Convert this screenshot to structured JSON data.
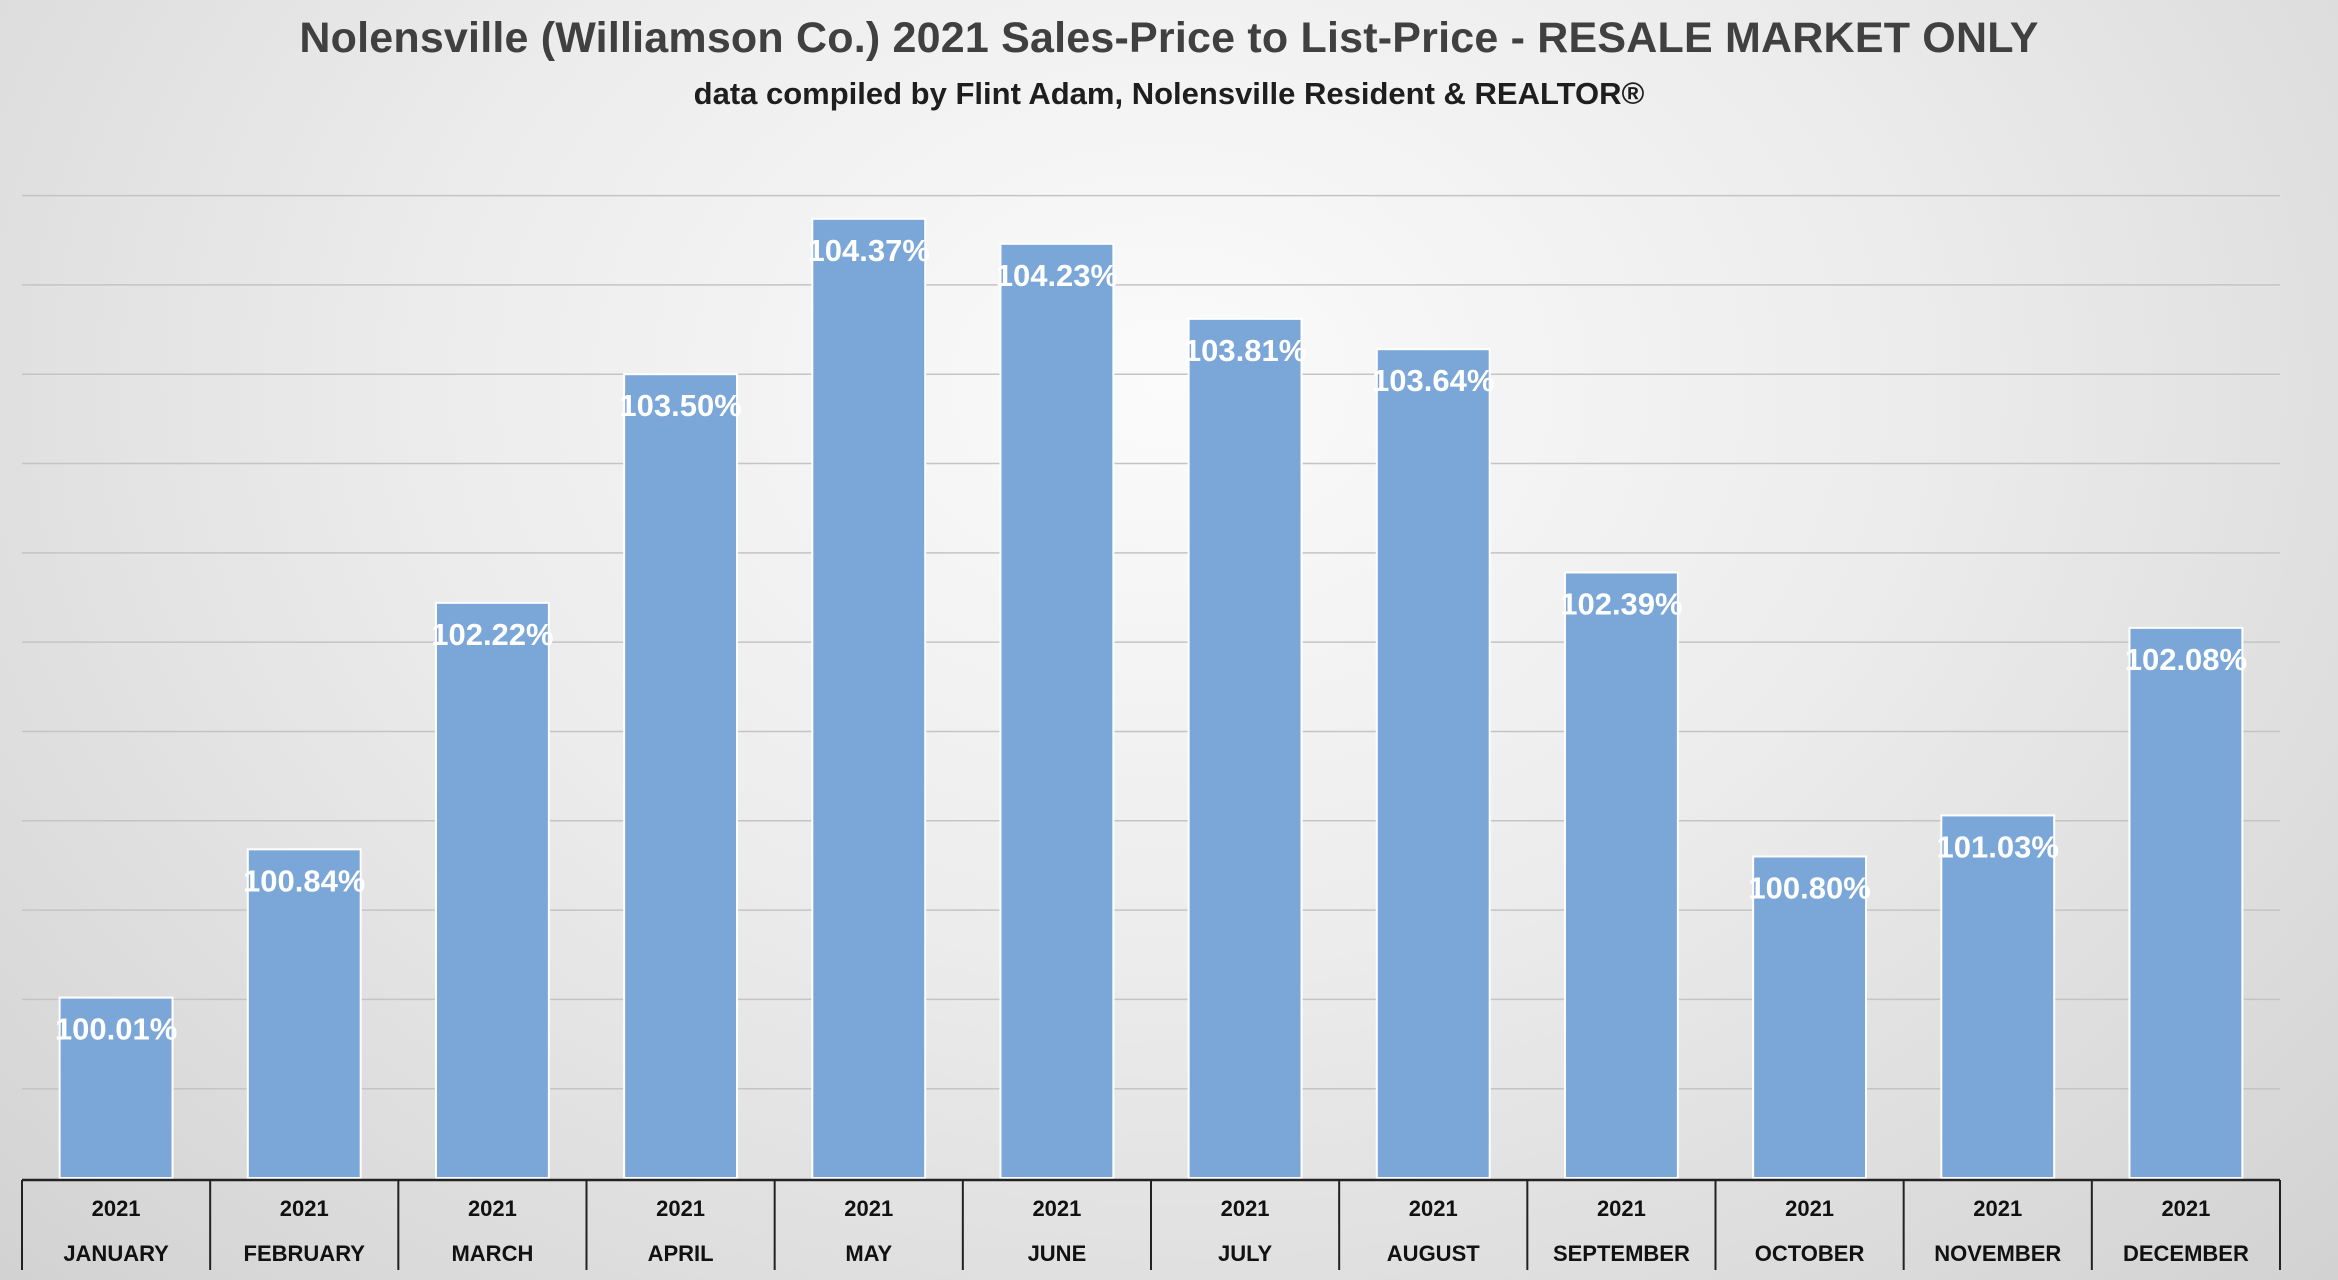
{
  "chart_data": {
    "type": "bar",
    "title": "Nolensville (Williamson Co.) 2021 Sales-Price to List-Price - RESALE MARKET ONLY",
    "subtitle": "data compiled by Flint Adam, Nolensville Resident & REALTOR®",
    "categories": [
      {
        "year": "2021",
        "month": "JANUARY"
      },
      {
        "year": "2021",
        "month": "FEBRUARY"
      },
      {
        "year": "2021",
        "month": "MARCH"
      },
      {
        "year": "2021",
        "month": "APRIL"
      },
      {
        "year": "2021",
        "month": "MAY"
      },
      {
        "year": "2021",
        "month": "JUNE"
      },
      {
        "year": "2021",
        "month": "JULY"
      },
      {
        "year": "2021",
        "month": "AUGUST"
      },
      {
        "year": "2021",
        "month": "SEPTEMBER"
      },
      {
        "year": "2021",
        "month": "OCTOBER"
      },
      {
        "year": "2021",
        "month": "NOVEMBER"
      },
      {
        "year": "2021",
        "month": "DECEMBER"
      }
    ],
    "values": [
      100.01,
      100.84,
      102.22,
      103.5,
      104.37,
      104.23,
      103.81,
      103.64,
      102.39,
      100.8,
      101.03,
      102.08
    ],
    "data_labels": [
      "100.01%",
      "100.84%",
      "102.22%",
      "103.50%",
      "104.37%",
      "104.23%",
      "103.81%",
      "103.64%",
      "102.39%",
      "100.80%",
      "101.03%",
      "102.08%"
    ],
    "ylim": [
      99.0,
      104.8
    ],
    "yaxis_labels_shown": false,
    "grid": true,
    "legend": "none",
    "bar_color": "#7ba7d8",
    "bar_edge_color": "#ffffff"
  }
}
